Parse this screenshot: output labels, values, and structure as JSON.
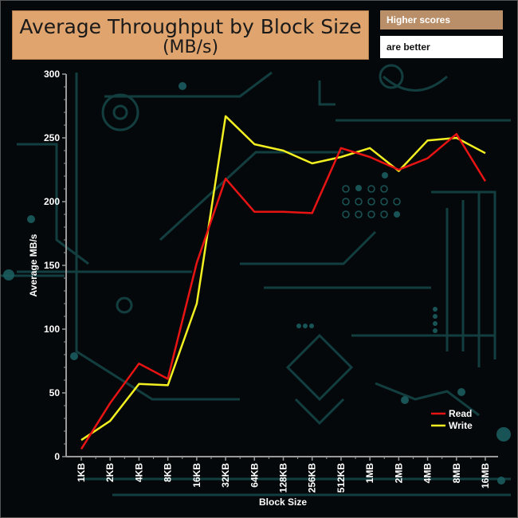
{
  "notes": {
    "line1": "Higher scores",
    "line2": "are better"
  },
  "colors": {
    "read": "#e81414",
    "write": "#f2f020",
    "axis": "#9a9a9a",
    "title_bg": "#e0a46e"
  },
  "chart_data": {
    "type": "line",
    "title": "Average Throughput by Block Size",
    "subtitle": "(MB/s)",
    "xlabel": "Block Size",
    "ylabel": "Average MB/s",
    "ylim": [
      0,
      300
    ],
    "yticks": [
      0,
      50,
      100,
      150,
      200,
      250,
      300
    ],
    "grid": false,
    "legend_position": "bottom-right",
    "categories": [
      "1KB",
      "2KB",
      "4KB",
      "8KB",
      "16KB",
      "32KB",
      "64KB",
      "128KB",
      "256KB",
      "512KB",
      "1MB",
      "2MB",
      "4MB",
      "8MB",
      "16MB"
    ],
    "series": [
      {
        "name": "Read",
        "color": "#e81414",
        "values": [
          6,
          42,
          73,
          61,
          152,
          218,
          192,
          192,
          191,
          242,
          235,
          225,
          234,
          253,
          216
        ]
      },
      {
        "name": "Write",
        "color": "#f2f020",
        "values": [
          13,
          28,
          57,
          56,
          120,
          267,
          245,
          240,
          230,
          235,
          242,
          224,
          248,
          250,
          238
        ]
      }
    ]
  }
}
